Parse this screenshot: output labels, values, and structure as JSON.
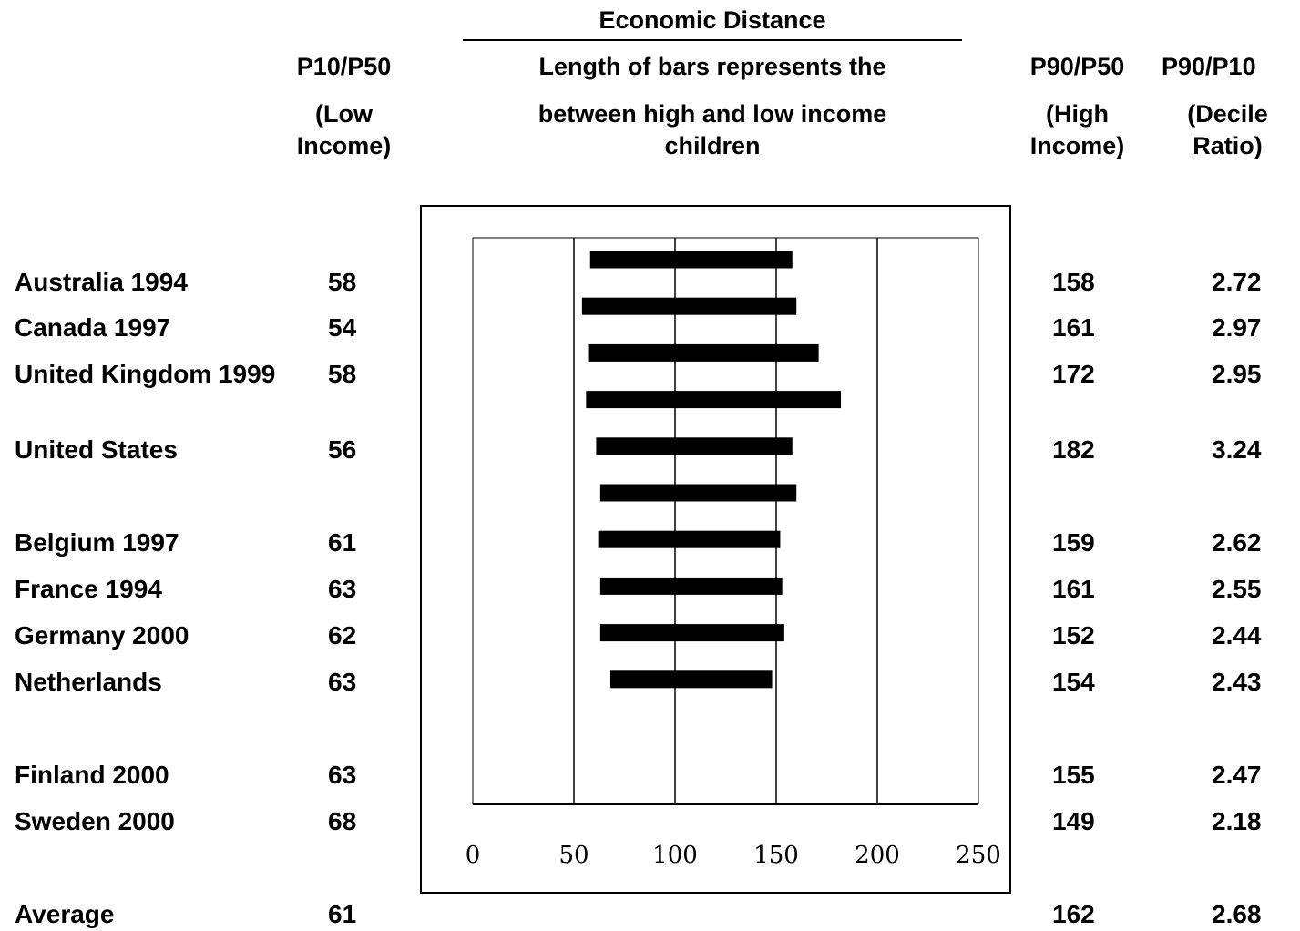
{
  "header": {
    "economic_distance": "Economic Distance",
    "desc_line1": "Length of bars represents the",
    "desc_line2": "between high and low income",
    "desc_line3": "children",
    "col_low_1": "P10/P50",
    "col_low_2": "(Low",
    "col_low_3": "Income)",
    "col_high_1": "P90/P50",
    "col_high_2": "(High",
    "col_high_3": "Income)",
    "col_dec_1": "P90/P10",
    "col_dec_2": "(Decile",
    "col_dec_3": "Ratio)"
  },
  "rows": [
    {
      "country": "Australia 1994",
      "low": "58",
      "high": "158",
      "decile": "2.72"
    },
    {
      "country": "Canada 1997",
      "low": "54",
      "high": "161",
      "decile": "2.97"
    },
    {
      "country": "United Kingdom 1999",
      "low": "58",
      "high": "172",
      "decile": "2.95"
    },
    {
      "country": "United States",
      "low": "56",
      "high": "182",
      "decile": "3.24"
    },
    {
      "country": "Belgium 1997",
      "low": "61",
      "high": "159",
      "decile": "2.62"
    },
    {
      "country": "France 1994",
      "low": "63",
      "high": "161",
      "decile": "2.55"
    },
    {
      "country": "Germany 2000",
      "low": "62",
      "high": "152",
      "decile": "2.44"
    },
    {
      "country": "Netherlands",
      "low": "63",
      "high": "154",
      "decile": "2.43"
    },
    {
      "country": "Finland 2000",
      "low": "63",
      "high": "155",
      "decile": "2.47"
    },
    {
      "country": "Sweden 2000",
      "low": "68",
      "high": "149",
      "decile": "2.18"
    },
    {
      "country": "Average",
      "low": "61",
      "high": "162",
      "decile": "2.68"
    }
  ],
  "chart_data": {
    "type": "bar",
    "orientation": "horizontal-range",
    "xlim": [
      0,
      250
    ],
    "xticks": [
      "0",
      "50",
      "100",
      "150",
      "200",
      "250"
    ],
    "gridlines_x": [
      50,
      100,
      150,
      200
    ],
    "bars": [
      {
        "low": 58,
        "high": 158
      },
      {
        "low": 54,
        "high": 160
      },
      {
        "low": 57,
        "high": 171
      },
      {
        "low": 56,
        "high": 182
      },
      {
        "low": 61,
        "high": 158
      },
      {
        "low": 63,
        "high": 160
      },
      {
        "low": 62,
        "high": 152
      },
      {
        "low": 63,
        "high": 153
      },
      {
        "low": 63,
        "high": 154
      },
      {
        "low": 68,
        "high": 148
      }
    ],
    "bar_color": "#000000"
  }
}
